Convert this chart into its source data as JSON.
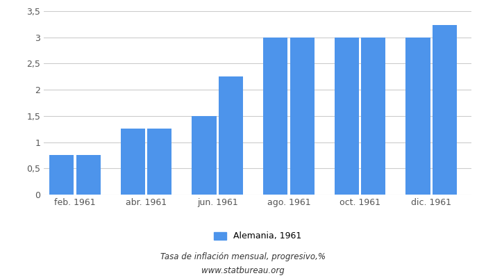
{
  "values": [
    0.75,
    0.75,
    1.26,
    1.26,
    1.5,
    2.25,
    2.99,
    2.99,
    2.99,
    2.99,
    2.99,
    3.24
  ],
  "bar_positions": [
    0.0,
    0.6,
    1.6,
    2.2,
    3.2,
    3.8,
    4.8,
    5.4,
    6.4,
    7.0,
    8.0,
    8.6
  ],
  "x_tick_positions": [
    0.3,
    1.9,
    3.5,
    5.1,
    6.7,
    8.3
  ],
  "x_tick_labels": [
    "feb. 1961",
    "abr. 1961",
    "jun. 1961",
    "ago. 1961",
    "oct. 1961",
    "dic. 1961"
  ],
  "bar_color": "#4d94eb",
  "bar_width": 0.55,
  "xlim": [
    -0.4,
    9.2
  ],
  "ylim": [
    0,
    3.5
  ],
  "yticks": [
    0,
    0.5,
    1.0,
    1.5,
    2.0,
    2.5,
    3.0,
    3.5
  ],
  "ytick_labels": [
    "0",
    "0,5",
    "1",
    "1,5",
    "2",
    "2,5",
    "3",
    "3,5"
  ],
  "legend_label": "Alemania, 1961",
  "xlabel_bottom1": "Tasa de inflación mensual, progresivo,%",
  "xlabel_bottom2": "www.statbureau.org",
  "background_color": "#ffffff",
  "grid_color": "#cccccc"
}
